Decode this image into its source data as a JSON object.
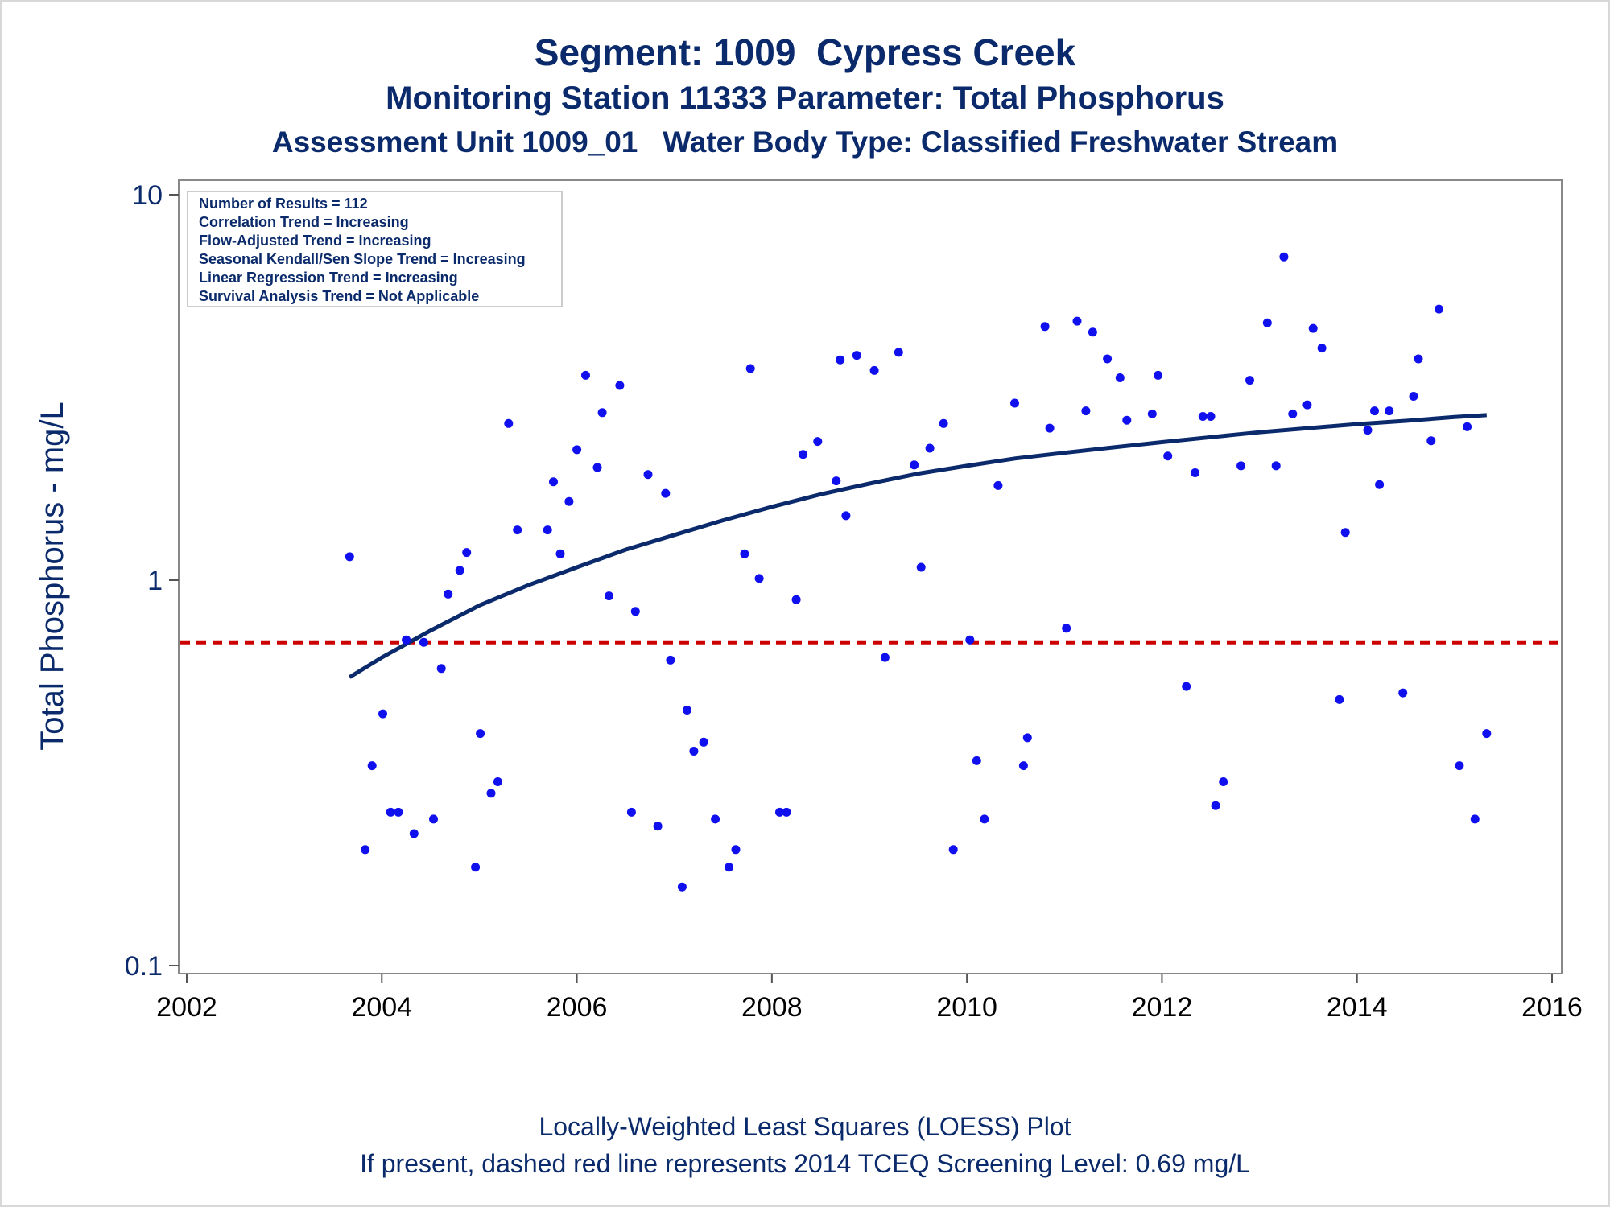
{
  "titles": {
    "line1": "Segment: 1009  Cypress Creek",
    "line2": "Monitoring Station 11333 Parameter: Total Phosphorus",
    "line3": "Assessment Unit 1009_01   Water Body Type: Classified Freshwater Stream"
  },
  "footnotes": {
    "line1": "Locally-Weighted Least Squares (LOESS) Plot",
    "line2": "If present, dashed red line represents 2014 TCEQ Screening Level: 0.69 mg/L"
  },
  "stats_box": [
    "Number of Results = 112",
    "Correlation Trend = Increasing",
    "Flow-Adjusted Trend = Increasing",
    "Seasonal Kendall/Sen Slope Trend = Increasing",
    "Linear Regression Trend = Increasing",
    "Survival Analysis Trend = Not Applicable"
  ],
  "colors": {
    "points": "#1010ee",
    "loess": "#0a2a6b",
    "screening_line": "#cc0000",
    "text": "#0a2a6b",
    "axis": "#888888"
  },
  "chart_data": {
    "type": "scatter",
    "xlabel": "",
    "ylabel": "Total Phosphorus - mg/L",
    "xlim": [
      2002,
      2016
    ],
    "ylim": [
      0.1,
      10
    ],
    "y_scale": "log",
    "x_ticks": [
      "2002",
      "2004",
      "2006",
      "2008",
      "2010",
      "2012",
      "2014",
      "2016"
    ],
    "y_ticks": [
      "0.1",
      "1",
      "10"
    ],
    "legend": "top-left",
    "screening_level": 0.69,
    "points": [
      [
        2003.67,
        1.15
      ],
      [
        2003.83,
        0.2
      ],
      [
        2003.9,
        0.33
      ],
      [
        2004.01,
        0.45
      ],
      [
        2004.09,
        0.25
      ],
      [
        2004.17,
        0.25
      ],
      [
        2004.25,
        0.7
      ],
      [
        2004.33,
        0.22
      ],
      [
        2004.43,
        0.69
      ],
      [
        2004.53,
        0.24
      ],
      [
        2004.61,
        0.59
      ],
      [
        2004.68,
        0.92
      ],
      [
        2004.8,
        1.06
      ],
      [
        2004.87,
        1.18
      ],
      [
        2004.96,
        0.18
      ],
      [
        2005.01,
        0.4
      ],
      [
        2005.12,
        0.28
      ],
      [
        2005.19,
        0.3
      ],
      [
        2005.3,
        2.55
      ],
      [
        2005.39,
        1.35
      ],
      [
        2005.7,
        1.35
      ],
      [
        2005.76,
        1.8
      ],
      [
        2005.83,
        1.17
      ],
      [
        2005.92,
        1.6
      ],
      [
        2006.0,
        2.18
      ],
      [
        2006.09,
        3.4
      ],
      [
        2006.21,
        1.96
      ],
      [
        2006.26,
        2.72
      ],
      [
        2006.33,
        0.91
      ],
      [
        2006.44,
        3.2
      ],
      [
        2006.56,
        0.25
      ],
      [
        2006.6,
        0.83
      ],
      [
        2006.73,
        1.88
      ],
      [
        2006.83,
        0.23
      ],
      [
        2006.91,
        1.68
      ],
      [
        2006.96,
        0.62
      ],
      [
        2007.08,
        0.16
      ],
      [
        2007.13,
        0.46
      ],
      [
        2007.2,
        0.36
      ],
      [
        2007.3,
        0.38
      ],
      [
        2007.42,
        0.24
      ],
      [
        2007.56,
        0.18
      ],
      [
        2007.63,
        0.2
      ],
      [
        2007.72,
        1.17
      ],
      [
        2007.78,
        3.54
      ],
      [
        2007.87,
        1.01
      ],
      [
        2008.08,
        0.25
      ],
      [
        2008.15,
        0.25
      ],
      [
        2008.25,
        0.89
      ],
      [
        2008.32,
        2.12
      ],
      [
        2008.47,
        2.29
      ],
      [
        2008.66,
        1.81
      ],
      [
        2008.7,
        3.73
      ],
      [
        2008.76,
        1.47
      ],
      [
        2008.87,
        3.83
      ],
      [
        2009.05,
        3.5
      ],
      [
        2009.16,
        0.63
      ],
      [
        2009.3,
        3.9
      ],
      [
        2009.46,
        1.99
      ],
      [
        2009.53,
        1.08
      ],
      [
        2009.62,
        2.2
      ],
      [
        2009.76,
        2.55
      ],
      [
        2009.86,
        0.2
      ],
      [
        2010.03,
        0.7
      ],
      [
        2010.1,
        0.34
      ],
      [
        2010.18,
        0.24
      ],
      [
        2010.32,
        1.76
      ],
      [
        2010.49,
        2.88
      ],
      [
        2010.58,
        0.33
      ],
      [
        2010.62,
        0.39
      ],
      [
        2010.8,
        4.55
      ],
      [
        2010.85,
        2.48
      ],
      [
        2011.02,
        0.75
      ],
      [
        2011.13,
        4.7
      ],
      [
        2011.22,
        2.75
      ],
      [
        2011.29,
        4.4
      ],
      [
        2011.44,
        3.75
      ],
      [
        2011.57,
        3.35
      ],
      [
        2011.64,
        2.6
      ],
      [
        2011.9,
        2.7
      ],
      [
        2011.96,
        3.4
      ],
      [
        2012.06,
        2.1
      ],
      [
        2012.25,
        0.53
      ],
      [
        2012.34,
        1.9
      ],
      [
        2012.42,
        2.66
      ],
      [
        2012.5,
        2.66
      ],
      [
        2012.55,
        0.26
      ],
      [
        2012.63,
        0.3
      ],
      [
        2012.81,
        1.98
      ],
      [
        2012.9,
        3.3
      ],
      [
        2013.08,
        4.65
      ],
      [
        2013.17,
        1.98
      ],
      [
        2013.25,
        6.9
      ],
      [
        2013.34,
        2.7
      ],
      [
        2013.49,
        2.85
      ],
      [
        2013.55,
        4.5
      ],
      [
        2013.64,
        4.0
      ],
      [
        2013.82,
        0.49
      ],
      [
        2013.88,
        1.33
      ],
      [
        2014.11,
        2.45
      ],
      [
        2014.18,
        2.75
      ],
      [
        2014.23,
        1.77
      ],
      [
        2014.33,
        2.75
      ],
      [
        2014.47,
        0.51
      ],
      [
        2014.58,
        3.0
      ],
      [
        2014.63,
        3.75
      ],
      [
        2014.76,
        2.3
      ],
      [
        2014.84,
        5.05
      ],
      [
        2015.05,
        0.33
      ],
      [
        2015.13,
        2.5
      ],
      [
        2015.21,
        0.24
      ],
      [
        2015.33,
        0.4
      ]
    ],
    "loess": [
      [
        2003.67,
        0.56
      ],
      [
        2004.0,
        0.63
      ],
      [
        2004.5,
        0.74
      ],
      [
        2005.0,
        0.86
      ],
      [
        2005.5,
        0.97
      ],
      [
        2006.0,
        1.08
      ],
      [
        2006.5,
        1.2
      ],
      [
        2007.0,
        1.31
      ],
      [
        2007.5,
        1.43
      ],
      [
        2008.0,
        1.55
      ],
      [
        2008.5,
        1.67
      ],
      [
        2009.0,
        1.78
      ],
      [
        2009.5,
        1.89
      ],
      [
        2010.0,
        1.98
      ],
      [
        2010.5,
        2.07
      ],
      [
        2011.0,
        2.14
      ],
      [
        2011.5,
        2.21
      ],
      [
        2012.0,
        2.28
      ],
      [
        2012.5,
        2.35
      ],
      [
        2013.0,
        2.42
      ],
      [
        2013.5,
        2.48
      ],
      [
        2014.0,
        2.54
      ],
      [
        2014.5,
        2.59
      ],
      [
        2015.0,
        2.65
      ],
      [
        2015.33,
        2.68
      ]
    ]
  }
}
